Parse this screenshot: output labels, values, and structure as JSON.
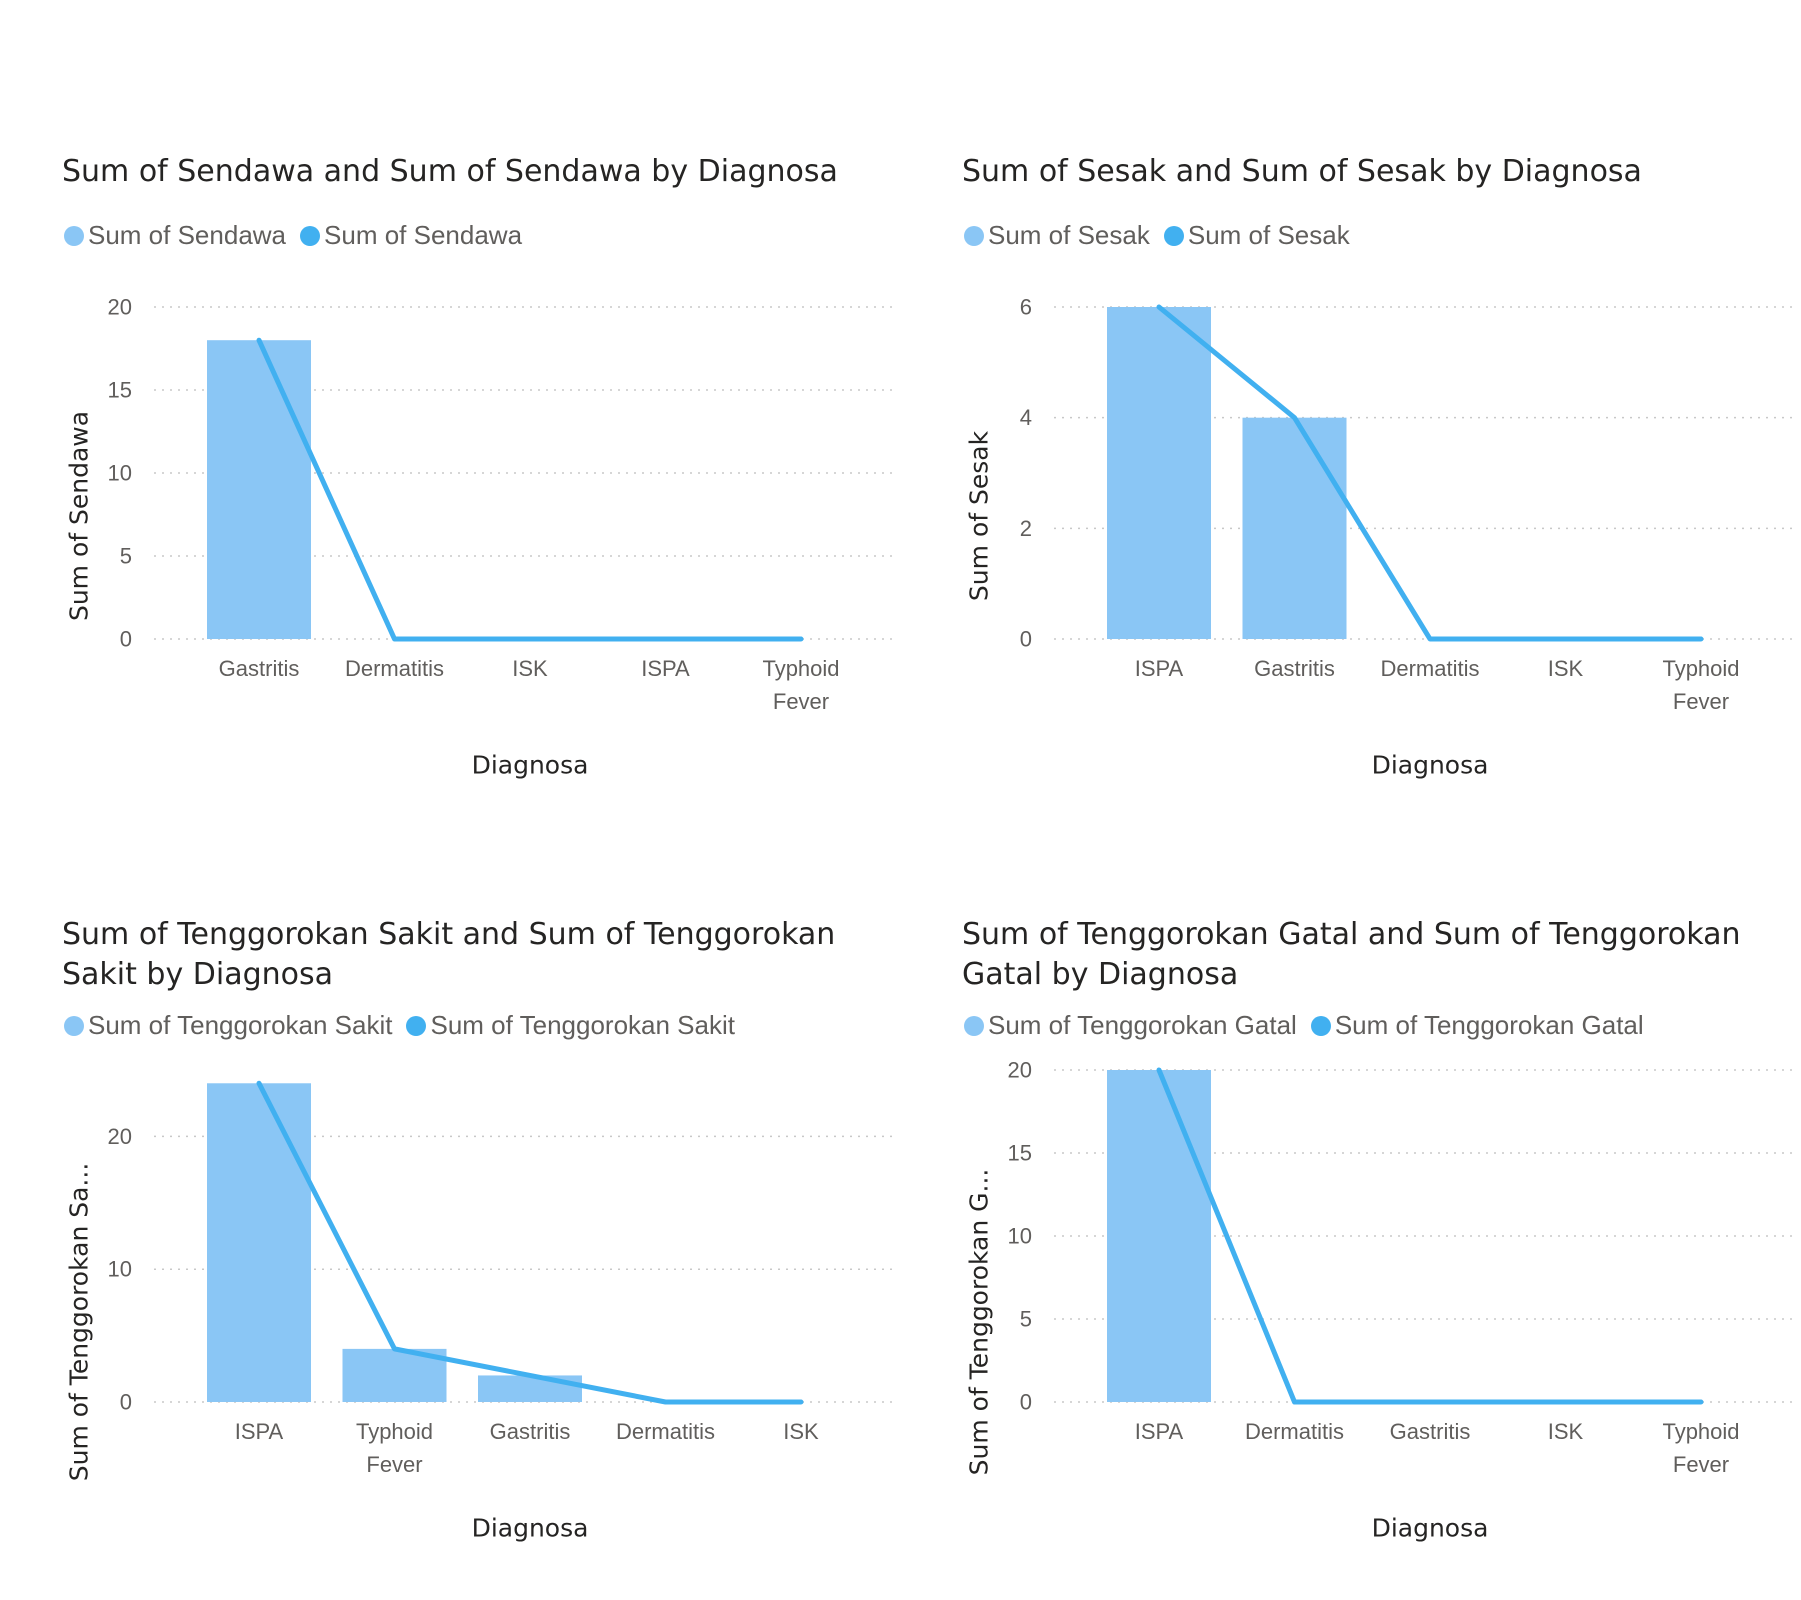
{
  "colors": {
    "bar": "#8AC6F5",
    "line": "#41B0F0",
    "grid": "#c8c8c8"
  },
  "chart_data": [
    {
      "type": "bar+line",
      "title": "Sum of Sendawa and Sum of Sendawa by Diagnosa",
      "legend": [
        "Sum of Sendawa",
        "Sum of Sendawa"
      ],
      "xlabel": "Diagnosa",
      "ylabel": "Sum of Sendawa",
      "categories": [
        "Gastritis",
        "Dermatitis",
        "ISK",
        "ISPA",
        "Typhoid Fever"
      ],
      "bar_values": [
        18,
        0,
        0,
        0,
        0
      ],
      "line_values": [
        18,
        0,
        0,
        0,
        0
      ],
      "yticks": [
        0,
        5,
        10,
        15,
        20
      ],
      "ylim": [
        0,
        20
      ],
      "grid": true,
      "legend_position": "top-left"
    },
    {
      "type": "bar+line",
      "title": "Sum of Sesak and Sum of Sesak by Diagnosa",
      "legend": [
        "Sum of Sesak",
        "Sum of Sesak"
      ],
      "xlabel": "Diagnosa",
      "ylabel": "Sum of Sesak",
      "categories": [
        "ISPA",
        "Gastritis",
        "Dermatitis",
        "ISK",
        "Typhoid Fever"
      ],
      "bar_values": [
        6,
        4,
        0,
        0,
        0
      ],
      "line_values": [
        6,
        4,
        0,
        0,
        0
      ],
      "yticks": [
        0,
        2,
        4,
        6
      ],
      "ylim": [
        0,
        6
      ],
      "grid": true,
      "legend_position": "top-left"
    },
    {
      "type": "bar+line",
      "title": "Sum of Tenggorokan Sakit and Sum of Tenggorokan Sakit by Diagnosa",
      "legend": [
        "Sum of Tenggorokan Sakit",
        "Sum of Tenggorokan Sakit"
      ],
      "xlabel": "Diagnosa",
      "ylabel": "Sum of Tenggorokan Sa...",
      "categories": [
        "ISPA",
        "Typhoid Fever",
        "Gastritis",
        "Dermatitis",
        "ISK"
      ],
      "bar_values": [
        24,
        4,
        2,
        0,
        0
      ],
      "line_values": [
        24,
        4,
        2,
        0,
        0
      ],
      "yticks": [
        0,
        10,
        20
      ],
      "ylim": [
        0,
        25
      ],
      "grid": true,
      "legend_position": "top-left"
    },
    {
      "type": "bar+line",
      "title": "Sum of Tenggorokan Gatal and Sum of Tenggorokan Gatal by Diagnosa",
      "legend": [
        "Sum of Tenggorokan Gatal",
        "Sum of Tenggorokan Gatal"
      ],
      "xlabel": "Diagnosa",
      "ylabel": "Sum of Tenggorokan G...",
      "categories": [
        "ISPA",
        "Dermatitis",
        "Gastritis",
        "ISK",
        "Typhoid Fever"
      ],
      "bar_values": [
        20,
        0,
        0,
        0,
        0
      ],
      "line_values": [
        20,
        0,
        0,
        0,
        0
      ],
      "yticks": [
        0,
        5,
        10,
        15,
        20
      ],
      "ylim": [
        0,
        20
      ],
      "grid": true,
      "legend_position": "top-left"
    }
  ]
}
